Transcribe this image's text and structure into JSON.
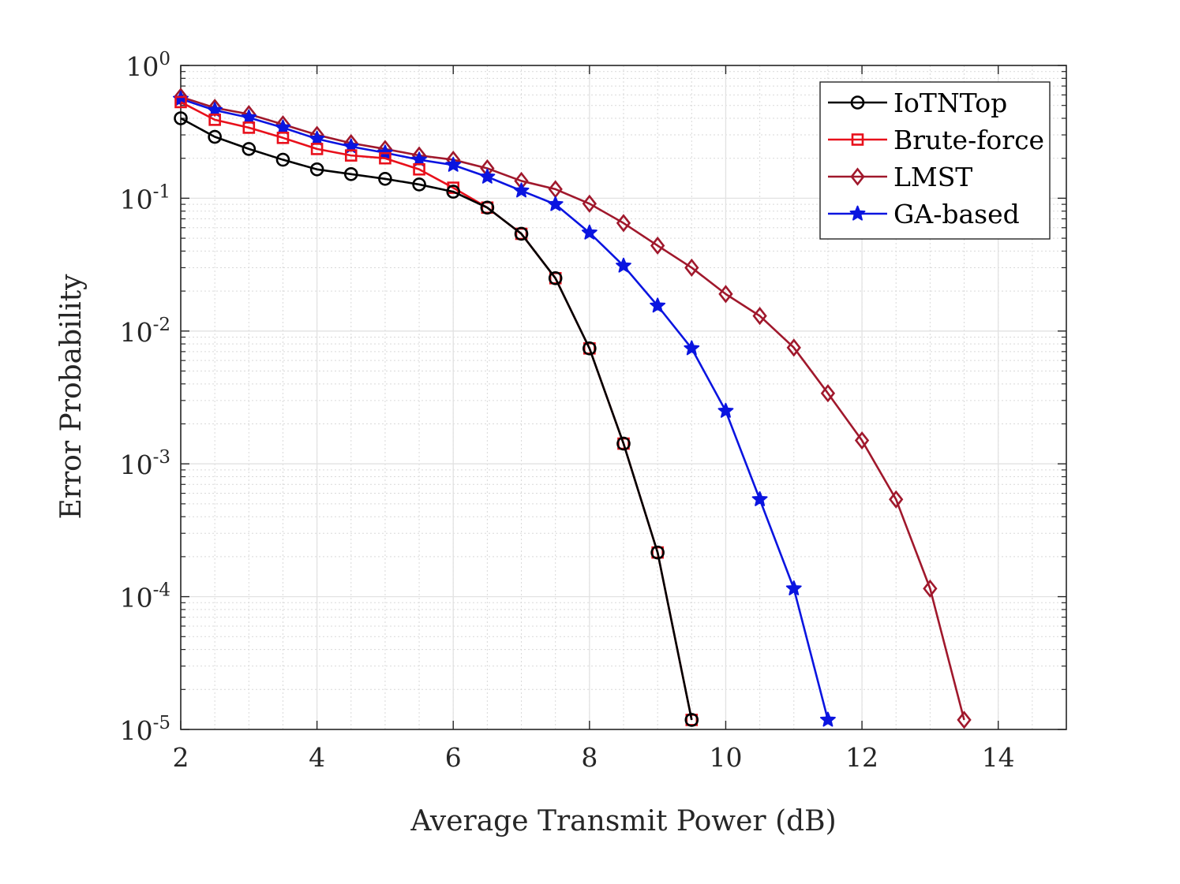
{
  "chart_data": {
    "type": "line",
    "title": "",
    "xlabel": "Average Transmit Power (dB)",
    "ylabel": "Error Probability",
    "xlim": [
      2,
      15
    ],
    "ylim": [
      1e-05,
      1
    ],
    "yscale": "log",
    "grid": true,
    "legend_position": "top-right",
    "x_ticks": [
      2,
      4,
      6,
      8,
      10,
      12,
      14
    ],
    "x_tick_labels": [
      "2",
      "4",
      "6",
      "8",
      "10",
      "12",
      "14"
    ],
    "y_ticks": [
      {
        "value": 1,
        "base": "10",
        "exp": "0"
      },
      {
        "value": 0.1,
        "base": "10",
        "exp": "-1"
      },
      {
        "value": 0.01,
        "base": "10",
        "exp": "-2"
      },
      {
        "value": 0.001,
        "base": "10",
        "exp": "-3"
      },
      {
        "value": 0.0001,
        "base": "10",
        "exp": "-4"
      },
      {
        "value": 1e-05,
        "base": "10",
        "exp": "-5"
      }
    ],
    "series": [
      {
        "name": "IoTNTop",
        "color": "#000000",
        "marker": "circle",
        "x": [
          2,
          2.5,
          3,
          3.5,
          4,
          4.5,
          5,
          5.5,
          6,
          6.5,
          7,
          7.5,
          8,
          8.5,
          9,
          9.5
        ],
        "values": [
          0.4,
          0.29,
          0.235,
          0.195,
          0.165,
          0.152,
          0.14,
          0.127,
          0.112,
          0.085,
          0.054,
          0.025,
          0.0074,
          0.00142,
          0.000215,
          1.18e-05
        ]
      },
      {
        "name": "Brute-force",
        "color": "#e8101b",
        "marker": "square",
        "x": [
          2,
          2.5,
          3,
          3.5,
          4,
          4.5,
          5,
          5.5,
          6,
          6.5,
          7,
          7.5,
          8,
          8.5,
          9,
          9.5
        ],
        "values": [
          0.53,
          0.39,
          0.34,
          0.285,
          0.235,
          0.21,
          0.2,
          0.165,
          0.12,
          0.085,
          0.054,
          0.025,
          0.0074,
          0.00142,
          0.000215,
          1.18e-05
        ]
      },
      {
        "name": "LMST",
        "color": "#a0182c",
        "marker": "diamond",
        "x": [
          2,
          2.5,
          3,
          3.5,
          4,
          4.5,
          5,
          5.5,
          6,
          6.5,
          7,
          7.5,
          8,
          8.5,
          9,
          9.5,
          10,
          10.5,
          11,
          11.5,
          12,
          12.5,
          13,
          13.5
        ],
        "values": [
          0.58,
          0.48,
          0.43,
          0.36,
          0.3,
          0.26,
          0.235,
          0.21,
          0.195,
          0.168,
          0.135,
          0.117,
          0.091,
          0.065,
          0.044,
          0.03,
          0.019,
          0.013,
          0.0075,
          0.0034,
          0.0015,
          0.00054,
          0.000115,
          1.18e-05
        ]
      },
      {
        "name": "GA-based",
        "color": "#0a14e0",
        "marker": "star",
        "x": [
          2,
          2.5,
          3,
          3.5,
          4,
          4.5,
          5,
          5.5,
          6,
          6.5,
          7,
          7.5,
          8,
          8.5,
          9,
          9.5,
          10,
          10.5,
          11,
          11.5
        ],
        "values": [
          0.56,
          0.46,
          0.405,
          0.34,
          0.28,
          0.245,
          0.22,
          0.195,
          0.178,
          0.145,
          0.114,
          0.09,
          0.055,
          0.031,
          0.0155,
          0.0074,
          0.0025,
          0.00054,
          0.000115,
          1.18e-05
        ]
      }
    ]
  }
}
